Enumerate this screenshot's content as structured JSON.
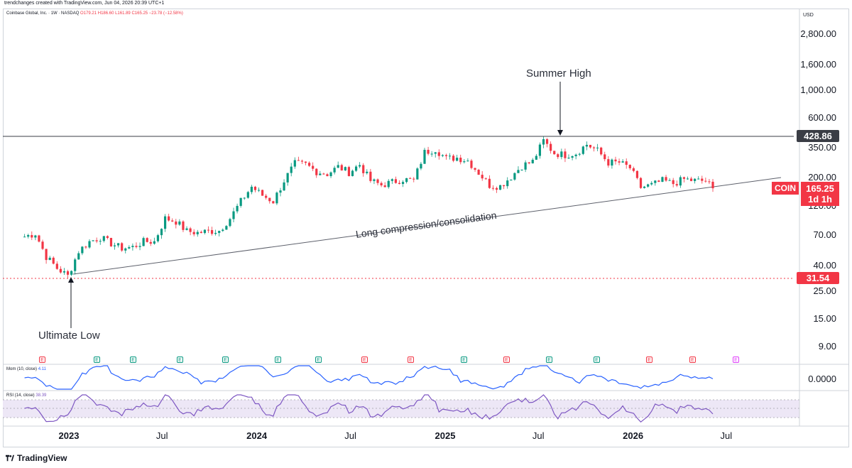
{
  "header": {
    "credit": "trendchanges created with TradingView.com, Jun 04, 2026 20:39 UTC+1",
    "symbol_line": "Coinbase Global, Inc. · 1W · NASDAQ",
    "ohlc": "O179.21 H186.60 L161.89 C165.25 −23.78 (−12.58%)",
    "currency": "USD"
  },
  "indicators": {
    "mom_label": "Mom (10, close)",
    "mom_value": "4.11",
    "rsi_label": "RSI (14, close)",
    "rsi_value": "38.39",
    "mom_axis": "0.0000"
  },
  "colors": {
    "up": "#089981",
    "down": "#f23645",
    "mom": "#2962ff",
    "rsi": "#7e57c2",
    "rsi_band": "#ede7f6",
    "level_line": "#3a3d45"
  },
  "price_axis": [
    "2,800.00",
    "1,600.00",
    "1,000.00",
    "600.00",
    "350.00",
    "200.00",
    "120.00",
    "70.00",
    "40.00",
    "25.00",
    "15.00",
    "9.00"
  ],
  "price_tags": {
    "high_level": "428.86",
    "low_level": "31.54",
    "symbol": "COIN",
    "last_price": "165.25",
    "countdown": "1d 1h"
  },
  "time_axis": [
    {
      "label": "2023",
      "bold": true
    },
    {
      "label": "Jul",
      "bold": false
    },
    {
      "label": "2024",
      "bold": true
    },
    {
      "label": "Jul",
      "bold": false
    },
    {
      "label": "2025",
      "bold": true
    },
    {
      "label": "Jul",
      "bold": false
    },
    {
      "label": "2026",
      "bold": true
    },
    {
      "label": "Jul",
      "bold": false
    }
  ],
  "annotations": {
    "summer_high": "Summer High",
    "ultimate_low": "Ultimate Low",
    "trendline": "Long compression/consolidation"
  },
  "events": [
    "E",
    "E",
    "E",
    "E",
    "E",
    "E",
    "E",
    "E",
    "E",
    "E",
    "E",
    "E",
    "E",
    "E",
    "E",
    "E"
  ],
  "brand": "TradingView",
  "chart_data": {
    "type": "candlestick",
    "timeframe": "1W",
    "scale": "log",
    "ylim": [
      7,
      4000
    ],
    "x_range": [
      "2022-10",
      "2026-08"
    ],
    "horizontal_levels": [
      428.86,
      31.54
    ],
    "trendline": {
      "from": {
        "date": "2023-01-06",
        "price": 31.54
      },
      "to": {
        "date": "2026-08-14",
        "price": 188
      }
    },
    "last": {
      "open": 179.21,
      "high": 186.6,
      "low": 161.89,
      "close": 165.25,
      "change": -23.78,
      "change_pct": -12.58
    },
    "closes": [
      {
        "d": "2022-10-07",
        "c": 68
      },
      {
        "d": "2022-10-28",
        "c": 72
      },
      {
        "d": "2022-11-18",
        "c": 47
      },
      {
        "d": "2022-12-09",
        "c": 38
      },
      {
        "d": "2022-12-30",
        "c": 33
      },
      {
        "d": "2023-01-20",
        "c": 52
      },
      {
        "d": "2023-02-10",
        "c": 62
      },
      {
        "d": "2023-03-03",
        "c": 67
      },
      {
        "d": "2023-03-24",
        "c": 60
      },
      {
        "d": "2023-04-14",
        "c": 55
      },
      {
        "d": "2023-05-05",
        "c": 56
      },
      {
        "d": "2023-05-26",
        "c": 62
      },
      {
        "d": "2023-06-16",
        "c": 62
      },
      {
        "d": "2023-07-07",
        "c": 95
      },
      {
        "d": "2023-07-28",
        "c": 90
      },
      {
        "d": "2023-08-18",
        "c": 75
      },
      {
        "d": "2023-09-08",
        "c": 73
      },
      {
        "d": "2023-09-29",
        "c": 75
      },
      {
        "d": "2023-10-20",
        "c": 76
      },
      {
        "d": "2023-11-10",
        "c": 95
      },
      {
        "d": "2023-12-01",
        "c": 130
      },
      {
        "d": "2023-12-22",
        "c": 170
      },
      {
        "d": "2024-01-12",
        "c": 145
      },
      {
        "d": "2024-02-02",
        "c": 130
      },
      {
        "d": "2024-02-23",
        "c": 190
      },
      {
        "d": "2024-03-15",
        "c": 260
      },
      {
        "d": "2024-04-05",
        "c": 255
      },
      {
        "d": "2024-04-26",
        "c": 225
      },
      {
        "d": "2024-05-17",
        "c": 215
      },
      {
        "d": "2024-06-07",
        "c": 245
      },
      {
        "d": "2024-06-28",
        "c": 222
      },
      {
        "d": "2024-07-19",
        "c": 255
      },
      {
        "d": "2024-08-09",
        "c": 190
      },
      {
        "d": "2024-08-30",
        "c": 175
      },
      {
        "d": "2024-09-20",
        "c": 185
      },
      {
        "d": "2024-10-11",
        "c": 195
      },
      {
        "d": "2024-11-01",
        "c": 190
      },
      {
        "d": "2024-11-22",
        "c": 320
      },
      {
        "d": "2024-12-13",
        "c": 340
      },
      {
        "d": "2025-01-03",
        "c": 285
      },
      {
        "d": "2025-01-24",
        "c": 290
      },
      {
        "d": "2025-02-14",
        "c": 275
      },
      {
        "d": "2025-03-07",
        "c": 220
      },
      {
        "d": "2025-03-28",
        "c": 175
      },
      {
        "d": "2025-04-18",
        "c": 172
      },
      {
        "d": "2025-05-09",
        "c": 205
      },
      {
        "d": "2025-05-30",
        "c": 250
      },
      {
        "d": "2025-06-20",
        "c": 270
      },
      {
        "d": "2025-07-11",
        "c": 395
      },
      {
        "d": "2025-08-01",
        "c": 315
      },
      {
        "d": "2025-08-22",
        "c": 305
      },
      {
        "d": "2025-09-12",
        "c": 315
      },
      {
        "d": "2025-10-03",
        "c": 370
      },
      {
        "d": "2025-10-24",
        "c": 330
      },
      {
        "d": "2025-11-14",
        "c": 265
      },
      {
        "d": "2025-12-05",
        "c": 265
      },
      {
        "d": "2025-12-26",
        "c": 240
      },
      {
        "d": "2026-01-16",
        "c": 168
      },
      {
        "d": "2026-02-06",
        "c": 175
      },
      {
        "d": "2026-02-27",
        "c": 190
      },
      {
        "d": "2026-03-20",
        "c": 180
      },
      {
        "d": "2026-04-10",
        "c": 195
      },
      {
        "d": "2026-05-01",
        "c": 190
      },
      {
        "d": "2026-05-22",
        "c": 189
      },
      {
        "d": "2026-06-05",
        "c": 165.25
      }
    ]
  }
}
